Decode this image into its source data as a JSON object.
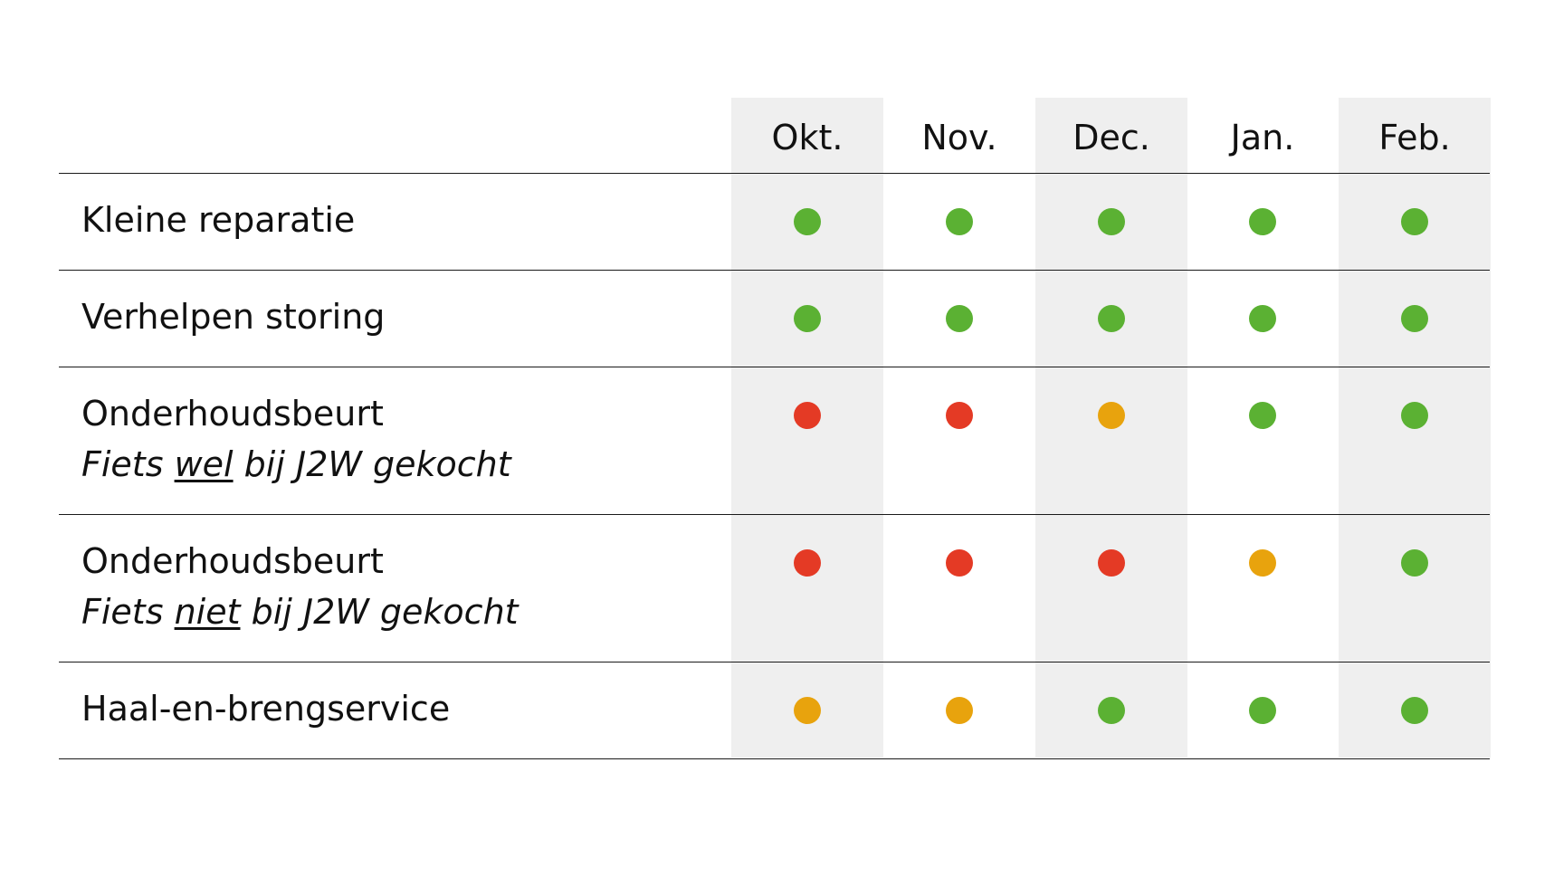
{
  "colors": {
    "green": "#5bb133",
    "red": "#e43a25",
    "orange": "#e8a30d",
    "stripe": "#efefef",
    "rule": "#1a1a1a"
  },
  "months": [
    "Okt.",
    "Nov.",
    "Dec.",
    "Jan.",
    "Feb."
  ],
  "rows": [
    {
      "title": "Kleine reparatie",
      "status": [
        "green",
        "green",
        "green",
        "green",
        "green"
      ]
    },
    {
      "title": "Verhelpen storing",
      "status": [
        "green",
        "green",
        "green",
        "green",
        "green"
      ]
    },
    {
      "title": "Onderhoudsbeurt",
      "subtitle_pre": "Fiets ",
      "subtitle_emph": "wel",
      "subtitle_post": " bij J2W gekocht",
      "status": [
        "red",
        "red",
        "orange",
        "green",
        "green"
      ]
    },
    {
      "title": "Onderhoudsbeurt",
      "subtitle_pre": "Fiets ",
      "subtitle_emph": "niet",
      "subtitle_post": " bij J2W gekocht",
      "status": [
        "red",
        "red",
        "red",
        "orange",
        "green"
      ]
    },
    {
      "title": "Haal-en-brengservice",
      "status": [
        "orange",
        "orange",
        "green",
        "green",
        "green"
      ]
    }
  ]
}
